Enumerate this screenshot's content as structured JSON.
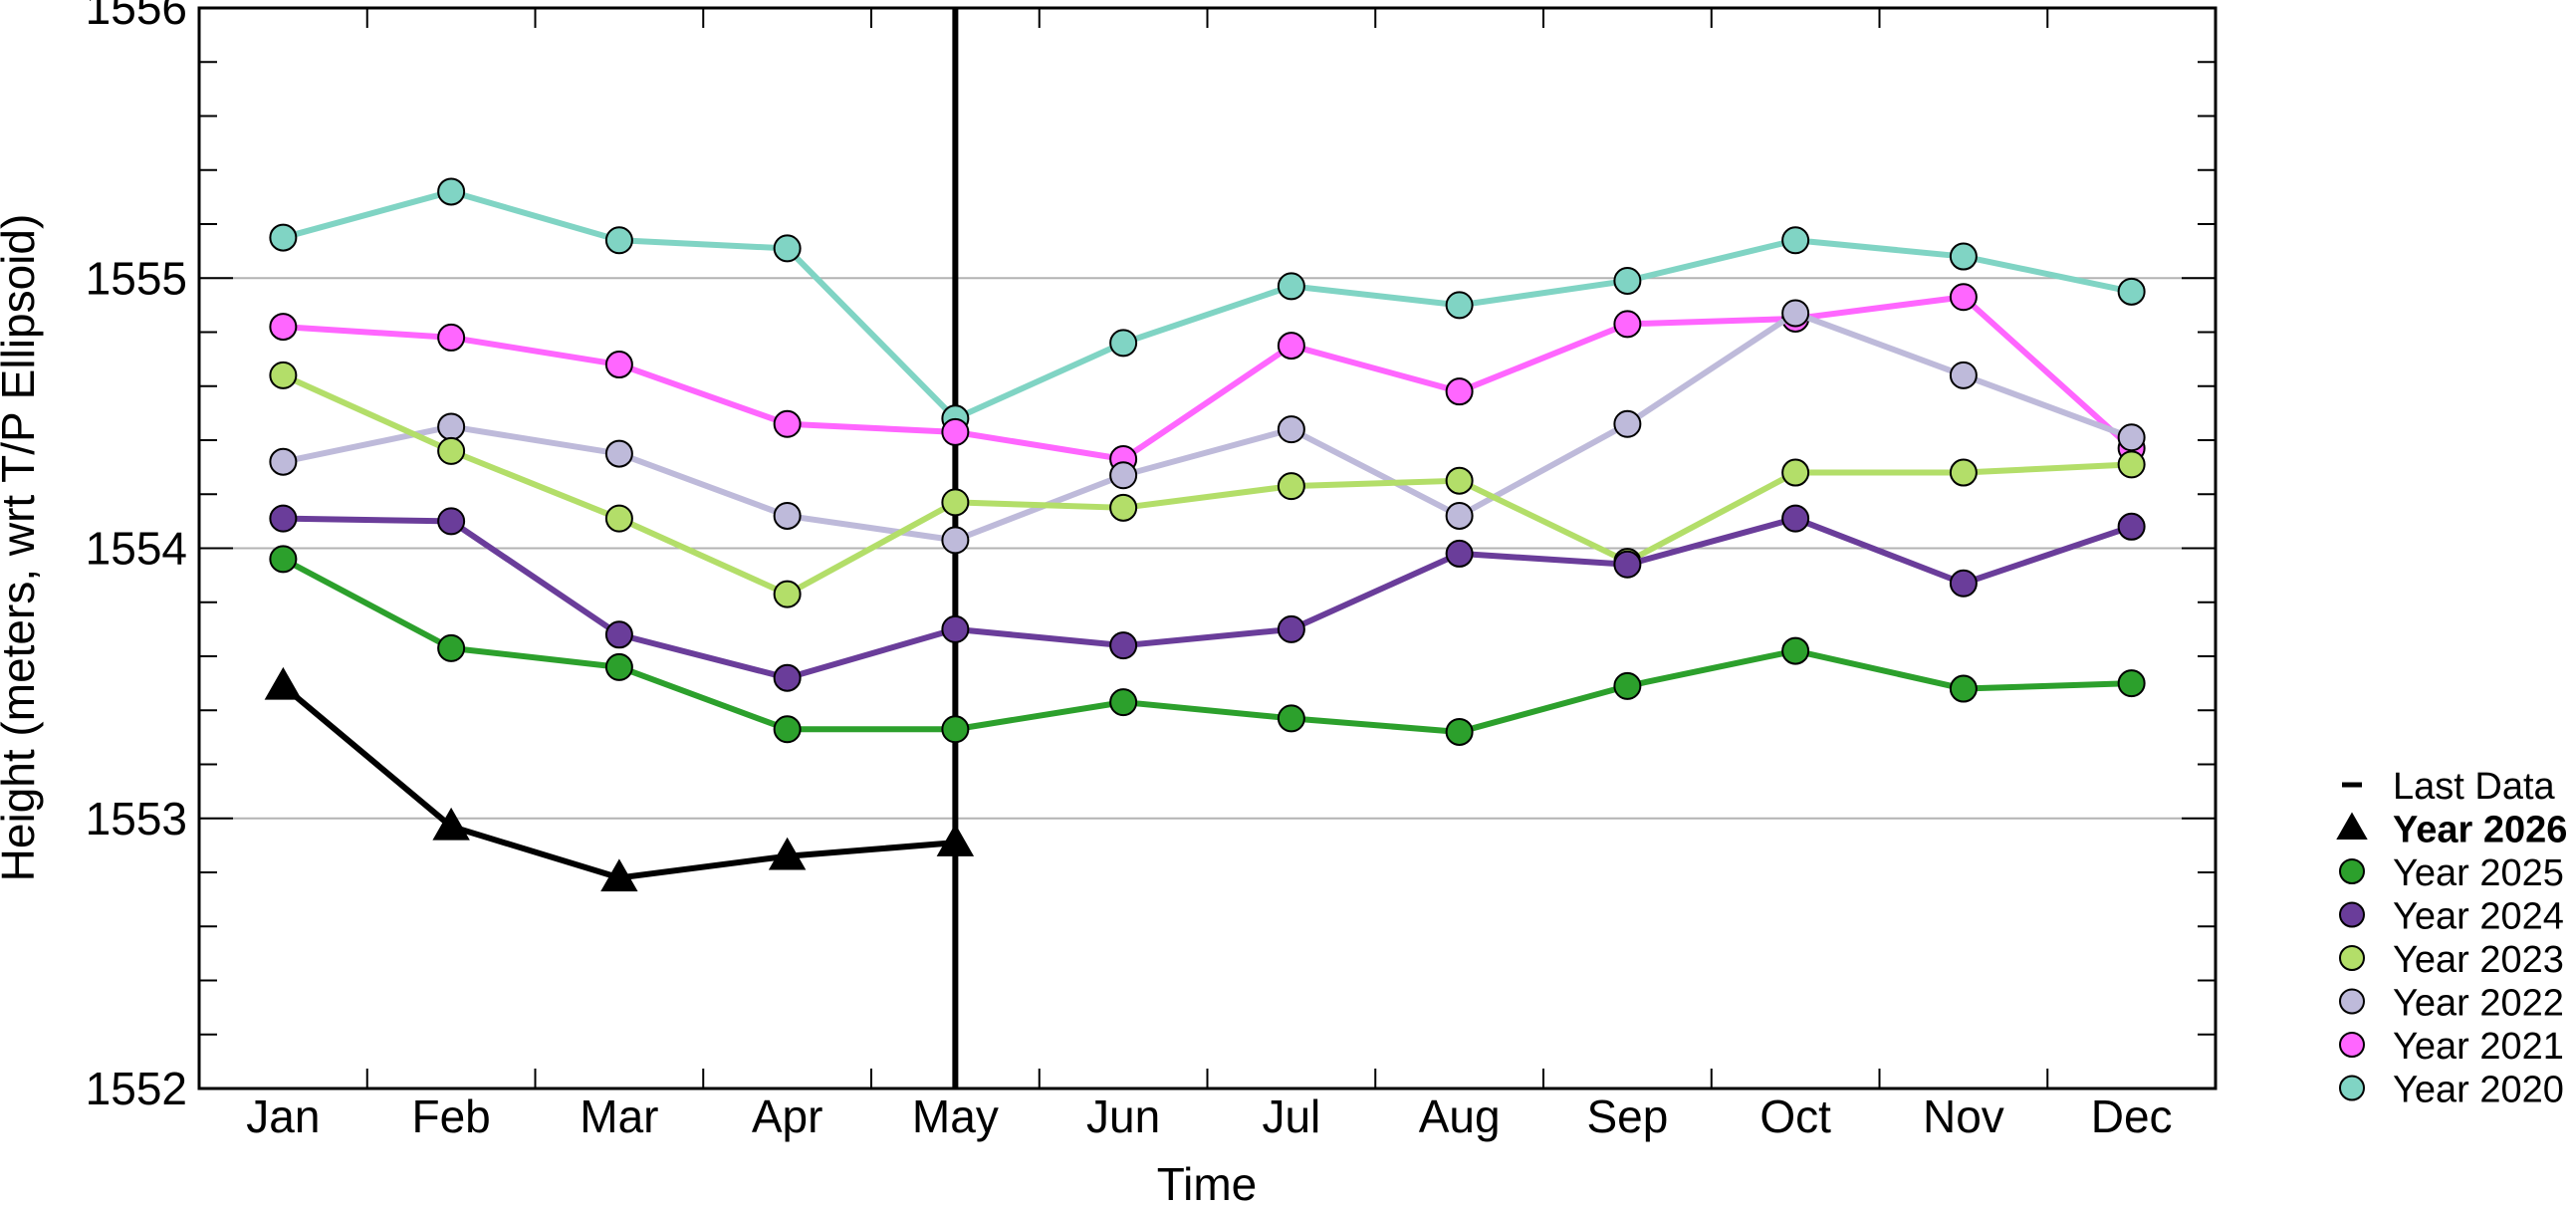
{
  "chart_data": {
    "type": "line",
    "title": "",
    "xlabel": "Time",
    "ylabel": "Height (meters, wrt T/P Ellipsoid)",
    "categories": [
      "Jan",
      "Feb",
      "Mar",
      "Apr",
      "May",
      "Jun",
      "Jul",
      "Aug",
      "Sep",
      "Oct",
      "Nov",
      "Dec"
    ],
    "ylim": [
      1552,
      1556
    ],
    "yticks": [
      1552,
      1553,
      1554,
      1555,
      1556
    ],
    "grid": "horizontal at major ticks",
    "legend_position": "right",
    "last_data": {
      "label": "Last Data",
      "category": "May",
      "color": "#000000"
    },
    "series": [
      {
        "name": "Year 2026",
        "color": "#000000",
        "marker": "triangle",
        "bold": true,
        "values": [
          1553.49,
          1552.97,
          1552.78,
          1552.86,
          1552.91,
          null,
          null,
          null,
          null,
          null,
          null,
          null
        ]
      },
      {
        "name": "Year 2025",
        "color": "#2ca02c",
        "marker": "circle",
        "values": [
          1553.96,
          1553.63,
          1553.56,
          1553.33,
          1553.33,
          1553.43,
          1553.37,
          1553.32,
          1553.49,
          1553.62,
          1553.48,
          1553.5
        ]
      },
      {
        "name": "Year 2024",
        "color": "#6a3d9a",
        "marker": "circle",
        "values": [
          1554.11,
          1554.1,
          1553.68,
          1553.52,
          1553.7,
          1553.64,
          1553.7,
          1553.98,
          1553.94,
          1554.11,
          1553.87,
          1554.08
        ]
      },
      {
        "name": "Year 2023",
        "color": "#b3de69",
        "marker": "circle",
        "values": [
          1554.64,
          1554.36,
          1554.11,
          1553.83,
          1554.17,
          1554.15,
          1554.23,
          1554.25,
          1553.95,
          1554.28,
          1554.28,
          1554.31
        ]
      },
      {
        "name": "Year 2022",
        "color": "#bebada",
        "marker": "circle",
        "values": [
          1554.32,
          1554.45,
          1554.35,
          1554.12,
          1554.03,
          1554.27,
          1554.44,
          1554.12,
          1554.46,
          1554.87,
          1554.64,
          1554.41
        ]
      },
      {
        "name": "Year 2021",
        "color": "#ff66ff",
        "marker": "circle",
        "values": [
          1554.82,
          1554.78,
          1554.68,
          1554.46,
          1554.43,
          1554.33,
          1554.75,
          1554.58,
          1554.83,
          1554.85,
          1554.93,
          1554.37
        ]
      },
      {
        "name": "Year 2020",
        "color": "#80d4c4",
        "marker": "circle",
        "values": [
          1555.15,
          1555.32,
          1555.14,
          1555.11,
          1554.48,
          1554.76,
          1554.97,
          1554.9,
          1554.99,
          1555.14,
          1555.08,
          1554.95
        ]
      }
    ]
  }
}
